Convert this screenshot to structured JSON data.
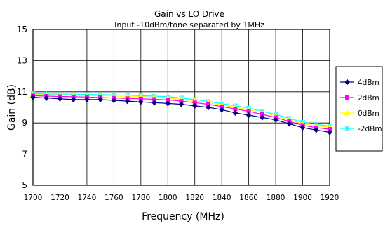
{
  "chart_data": {
    "type": "line",
    "title": "Gain vs LO Drive",
    "subtitle": "Input -10dBm/tone separated by 1MHz",
    "xlabel": "Frequency (MHz)",
    "ylabel": "Gain (dB)",
    "xlim": [
      1700,
      1920
    ],
    "ylim": [
      5,
      15
    ],
    "xticks": [
      1700,
      1720,
      1740,
      1760,
      1780,
      1800,
      1820,
      1840,
      1860,
      1880,
      1900,
      1920
    ],
    "yticks": [
      5,
      7,
      9,
      11,
      13,
      15
    ],
    "grid": true,
    "legend_position": "right",
    "x": [
      1700,
      1710,
      1720,
      1730,
      1740,
      1750,
      1760,
      1770,
      1780,
      1790,
      1800,
      1810,
      1820,
      1830,
      1840,
      1850,
      1860,
      1870,
      1880,
      1890,
      1900,
      1910,
      1920
    ],
    "series": [
      {
        "name": "4dBm",
        "color": "#000080",
        "marker": "diamond",
        "values": [
          10.65,
          10.6,
          10.55,
          10.5,
          10.5,
          10.5,
          10.45,
          10.4,
          10.35,
          10.3,
          10.25,
          10.2,
          10.1,
          10.0,
          9.85,
          9.65,
          9.5,
          9.35,
          9.2,
          8.95,
          8.7,
          8.55,
          8.4
        ]
      },
      {
        "name": "2dBm",
        "color": "#ff00ff",
        "marker": "square",
        "values": [
          10.75,
          10.72,
          10.7,
          10.68,
          10.66,
          10.63,
          10.6,
          10.57,
          10.55,
          10.52,
          10.48,
          10.4,
          10.3,
          10.2,
          10.05,
          9.9,
          9.75,
          9.55,
          9.35,
          9.1,
          8.85,
          8.7,
          8.6
        ]
      },
      {
        "name": "0dBm",
        "color": "#ffff00",
        "marker": "triangle",
        "values": [
          10.82,
          10.8,
          10.8,
          10.78,
          10.77,
          10.75,
          10.73,
          10.7,
          10.68,
          10.65,
          10.6,
          10.52,
          10.42,
          10.3,
          10.15,
          10.0,
          9.85,
          9.65,
          9.45,
          9.2,
          8.95,
          8.8,
          8.75
        ]
      },
      {
        "name": "-2dBm",
        "color": "#00ffff",
        "marker": "x",
        "values": [
          10.88,
          10.86,
          10.85,
          10.84,
          10.83,
          10.82,
          10.8,
          10.78,
          10.75,
          10.72,
          10.68,
          10.6,
          10.5,
          10.38,
          10.24,
          10.1,
          9.95,
          9.75,
          9.55,
          9.3,
          9.05,
          8.9,
          8.8
        ]
      }
    ]
  }
}
